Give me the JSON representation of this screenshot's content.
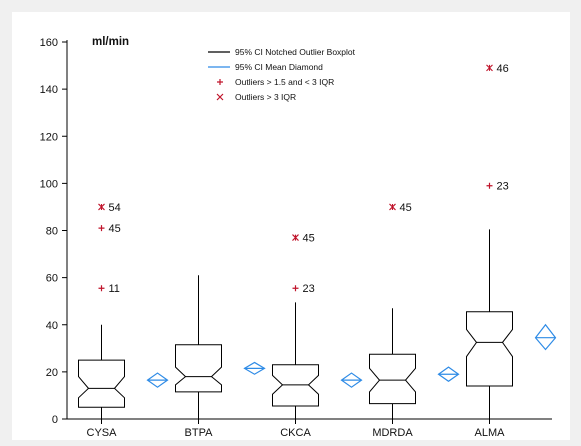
{
  "chart_data": {
    "type": "boxplot",
    "ylabel": "ml/min",
    "ylim": [
      0,
      160
    ],
    "yticks": [
      0,
      20,
      40,
      60,
      80,
      100,
      120,
      140,
      160
    ],
    "grid": false,
    "legend_position": "top-center",
    "legend": [
      {
        "label": "95% CI Notched Outlier Boxplot",
        "symbol": "line",
        "color": "#000000"
      },
      {
        "label": "95% CI Mean Diamond",
        "symbol": "line",
        "color": "#2e8be6"
      },
      {
        "label": "Outliers > 1.5 and < 3 IQR",
        "symbol": "+",
        "color": "#c0142b"
      },
      {
        "label": "Outliers > 3 IQR",
        "symbol": "x",
        "color": "#c0142b"
      }
    ],
    "categories": [
      "CYSA",
      "BTPA",
      "CKCA",
      "MDRDA",
      "ALMA"
    ],
    "boxes": [
      {
        "name": "CYSA",
        "whisker_low": 0,
        "q1": 5,
        "median": 13,
        "q3": 25,
        "whisker_high": 40,
        "notch_low": 9,
        "notch_high": 18,
        "mean": 16.5,
        "mean_ci_low": 13.5,
        "mean_ci_high": 19.5
      },
      {
        "name": "BTPA",
        "whisker_low": 0,
        "q1": 11.5,
        "median": 18,
        "q3": 31.5,
        "whisker_high": 61,
        "notch_low": 14.5,
        "notch_high": 22,
        "mean": 21.5,
        "mean_ci_low": 19,
        "mean_ci_high": 24
      },
      {
        "name": "CKCA",
        "whisker_low": 0,
        "q1": 5.5,
        "median": 14.5,
        "q3": 23,
        "whisker_high": 49.5,
        "notch_low": 10.5,
        "notch_high": 18.5,
        "mean": 16.5,
        "mean_ci_low": 13.5,
        "mean_ci_high": 19.5
      },
      {
        "name": "MDRDA",
        "whisker_low": 0,
        "q1": 6.5,
        "median": 16.5,
        "q3": 27.5,
        "whisker_high": 47,
        "notch_low": 11.5,
        "notch_high": 21.5,
        "mean": 19,
        "mean_ci_low": 16,
        "mean_ci_high": 22
      },
      {
        "name": "ALMA",
        "whisker_low": 0,
        "q1": 14,
        "median": 32.5,
        "q3": 45.5,
        "whisker_high": 80.5,
        "notch_low": 26.5,
        "notch_high": 38,
        "mean": 34.5,
        "mean_ci_low": 29.5,
        "mean_ci_high": 40
      }
    ],
    "outliers": [
      {
        "category": "CYSA",
        "value": 90,
        "kind": "extreme",
        "label": "54"
      },
      {
        "category": "CYSA",
        "value": 81,
        "kind": "mild",
        "label": "45"
      },
      {
        "category": "CYSA",
        "value": 55.5,
        "kind": "mild",
        "label": "11"
      },
      {
        "category": "CKCA",
        "value": 77,
        "kind": "extreme",
        "label": "45"
      },
      {
        "category": "CKCA",
        "value": 55.5,
        "kind": "mild",
        "label": "23"
      },
      {
        "category": "MDRDA",
        "value": 90,
        "kind": "extreme",
        "label": "45"
      },
      {
        "category": "ALMA",
        "value": 149,
        "kind": "extreme",
        "label": "46"
      },
      {
        "category": "ALMA",
        "value": 99,
        "kind": "mild",
        "label": "23"
      }
    ]
  }
}
